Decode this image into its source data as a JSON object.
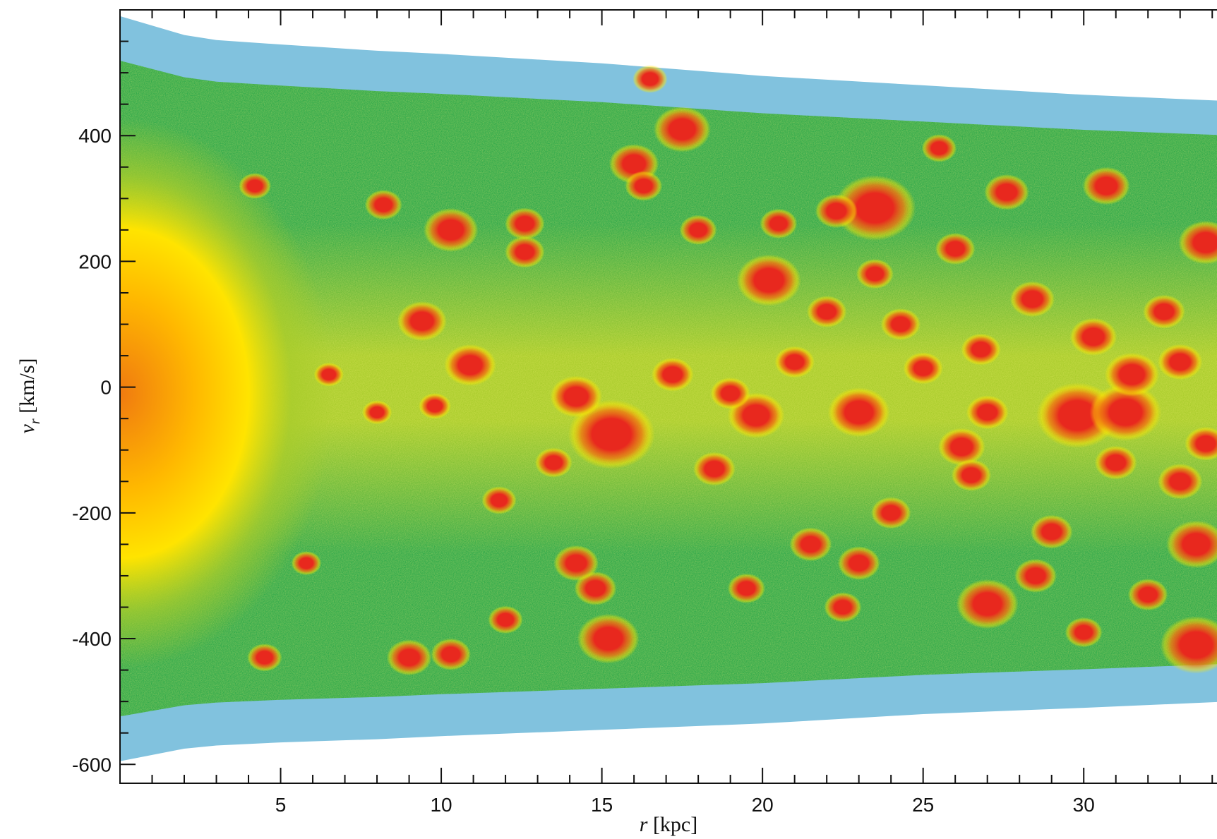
{
  "chart_data": {
    "type": "heatmap",
    "title": "",
    "xlabel": {
      "symbol": "r",
      "unit": " [kpc]"
    },
    "ylabel": {
      "symbol": "v",
      "subscript": "r",
      "unit": " [km/s]"
    },
    "xlim": [
      0,
      34.5
    ],
    "ylim": [
      -630,
      600
    ],
    "x_ticks": [
      5,
      10,
      15,
      20,
      25,
      30
    ],
    "x_tick_labels": [
      "5",
      "10",
      "15",
      "20",
      "25",
      "30"
    ],
    "y_ticks": [
      400,
      200,
      0,
      -200,
      -400,
      -600
    ],
    "y_tick_labels": [
      "400",
      "200",
      "0",
      "-200",
      "-400",
      "-600"
    ],
    "x_minor_step": 1,
    "y_minor_step": 50,
    "grid": false,
    "colors": {
      "sparse": "#1a8fc2",
      "low": "#2ea84a",
      "mid": "#a8cc2a",
      "high": "#ffe400",
      "peak": "#f07a10",
      "subhalo": "#e8281e"
    },
    "envelope": {
      "r": [
        0,
        1,
        2,
        3,
        5,
        8,
        10,
        15,
        20,
        25,
        30,
        34.5
      ],
      "v_max": [
        590,
        575,
        560,
        552,
        545,
        535,
        530,
        515,
        495,
        480,
        465,
        455
      ],
      "v_min": [
        -595,
        -585,
        -575,
        -570,
        -565,
        -560,
        -555,
        -545,
        -535,
        -520,
        -510,
        -500
      ]
    },
    "central_core": {
      "r": 0,
      "v": -10,
      "sigma_v": 230
    },
    "subhalos": [
      {
        "r": 17.5,
        "v": 410,
        "size": 1.6
      },
      {
        "r": 16.0,
        "v": 355,
        "size": 1.3
      },
      {
        "r": 23.5,
        "v": 285,
        "size": 2.6
      },
      {
        "r": 22.3,
        "v": 280,
        "size": 1.0
      },
      {
        "r": 10.3,
        "v": 250,
        "size": 1.5
      },
      {
        "r": 20.2,
        "v": 170,
        "size": 1.9
      },
      {
        "r": 9.4,
        "v": 105,
        "size": 1.3
      },
      {
        "r": 10.9,
        "v": 35,
        "size": 1.4
      },
      {
        "r": 15.3,
        "v": -75,
        "size": 2.8
      },
      {
        "r": 14.2,
        "v": -15,
        "size": 1.4
      },
      {
        "r": 19.8,
        "v": -45,
        "size": 1.6
      },
      {
        "r": 23.0,
        "v": -40,
        "size": 1.8
      },
      {
        "r": 29.8,
        "v": -45,
        "size": 2.6
      },
      {
        "r": 31.3,
        "v": -40,
        "size": 2.2
      },
      {
        "r": 31.5,
        "v": 20,
        "size": 1.5
      },
      {
        "r": 30.3,
        "v": 80,
        "size": 1.2
      },
      {
        "r": 33.8,
        "v": 230,
        "size": 1.5
      },
      {
        "r": 33.5,
        "v": -250,
        "size": 1.7
      },
      {
        "r": 27.0,
        "v": -345,
        "size": 1.8
      },
      {
        "r": 15.2,
        "v": -400,
        "size": 1.8
      },
      {
        "r": 33.5,
        "v": -410,
        "size": 2.2
      },
      {
        "r": 9.0,
        "v": -430,
        "size": 1.1
      },
      {
        "r": 10.3,
        "v": -425,
        "size": 0.9
      },
      {
        "r": 4.5,
        "v": -430,
        "size": 0.7
      },
      {
        "r": 14.8,
        "v": -320,
        "size": 1.0
      },
      {
        "r": 14.2,
        "v": -280,
        "size": 1.1
      },
      {
        "r": 26.2,
        "v": -95,
        "size": 1.2
      },
      {
        "r": 30.7,
        "v": 320,
        "size": 1.2
      },
      {
        "r": 27.6,
        "v": 310,
        "size": 1.1
      },
      {
        "r": 28.4,
        "v": 140,
        "size": 1.1
      },
      {
        "r": 24.3,
        "v": 100,
        "size": 0.9
      },
      {
        "r": 22.0,
        "v": 120,
        "size": 0.9
      },
      {
        "r": 12.6,
        "v": 215,
        "size": 0.9
      },
      {
        "r": 12.6,
        "v": 260,
        "size": 0.9
      },
      {
        "r": 16.3,
        "v": 320,
        "size": 0.8
      },
      {
        "r": 8.2,
        "v": 290,
        "size": 0.8
      },
      {
        "r": 4.2,
        "v": 320,
        "size": 0.6
      },
      {
        "r": 17.2,
        "v": 20,
        "size": 1.0
      },
      {
        "r": 18.5,
        "v": -130,
        "size": 1.0
      },
      {
        "r": 21.5,
        "v": -250,
        "size": 1.0
      },
      {
        "r": 23.0,
        "v": -280,
        "size": 1.0
      },
      {
        "r": 26.5,
        "v": -140,
        "size": 0.9
      },
      {
        "r": 29.0,
        "v": -230,
        "size": 1.0
      },
      {
        "r": 28.5,
        "v": -300,
        "size": 1.0
      },
      {
        "r": 31.0,
        "v": -120,
        "size": 1.0
      },
      {
        "r": 33.0,
        "v": -150,
        "size": 1.1
      },
      {
        "r": 32.5,
        "v": 120,
        "size": 1.0
      },
      {
        "r": 26.0,
        "v": 220,
        "size": 0.9
      },
      {
        "r": 25.0,
        "v": 30,
        "size": 0.9
      },
      {
        "r": 21.0,
        "v": 40,
        "size": 0.9
      },
      {
        "r": 19.0,
        "v": -10,
        "size": 0.9
      },
      {
        "r": 18.0,
        "v": 250,
        "size": 0.8
      },
      {
        "r": 13.5,
        "v": -120,
        "size": 0.8
      },
      {
        "r": 11.8,
        "v": -180,
        "size": 0.7
      },
      {
        "r": 12.0,
        "v": -370,
        "size": 0.7
      },
      {
        "r": 16.5,
        "v": 490,
        "size": 0.7
      },
      {
        "r": 6.5,
        "v": 20,
        "size": 0.5
      },
      {
        "r": 8.0,
        "v": -40,
        "size": 0.5
      },
      {
        "r": 5.8,
        "v": -280,
        "size": 0.5
      },
      {
        "r": 9.8,
        "v": -30,
        "size": 0.6
      },
      {
        "r": 24.0,
        "v": -200,
        "size": 0.9
      },
      {
        "r": 27.0,
        "v": -40,
        "size": 1.0
      },
      {
        "r": 22.5,
        "v": -350,
        "size": 0.8
      },
      {
        "r": 19.5,
        "v": -320,
        "size": 0.8
      },
      {
        "r": 32.0,
        "v": -330,
        "size": 0.9
      },
      {
        "r": 33.8,
        "v": -90,
        "size": 1.0
      },
      {
        "r": 30.0,
        "v": -390,
        "size": 0.8
      },
      {
        "r": 25.5,
        "v": 380,
        "size": 0.7
      },
      {
        "r": 20.5,
        "v": 260,
        "size": 0.8
      },
      {
        "r": 23.5,
        "v": 180,
        "size": 0.8
      },
      {
        "r": 26.8,
        "v": 60,
        "size": 0.9
      },
      {
        "r": 33.0,
        "v": 40,
        "size": 1.1
      }
    ]
  }
}
